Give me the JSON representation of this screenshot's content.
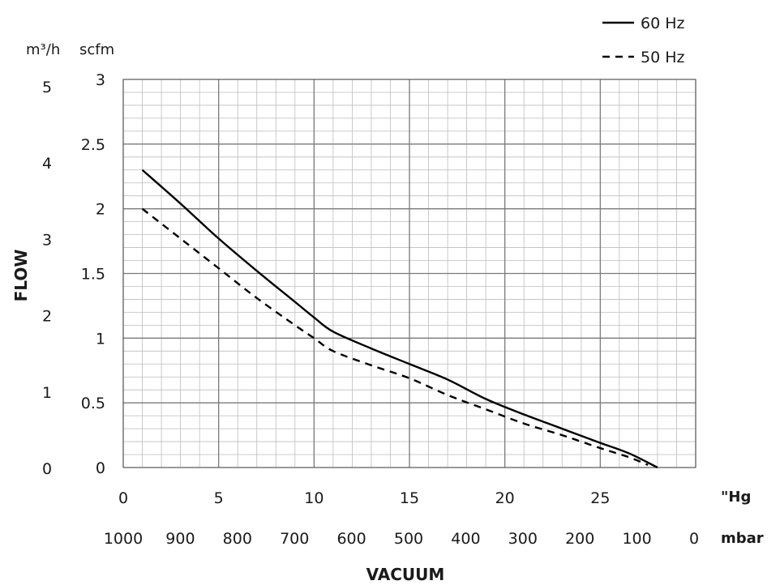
{
  "chart_data": {
    "type": "line",
    "xlabel": "VACUUM",
    "ylabel": "FLOW",
    "x_unit": "\"Hg",
    "x_unit_secondary": "mbar",
    "y_unit": "scfm",
    "y_unit_secondary": "m³/h",
    "xlim": [
      0,
      30
    ],
    "ylim": [
      0,
      3
    ],
    "x_ticks": [
      "0",
      "5",
      "10",
      "15",
      "20",
      "25"
    ],
    "x_ticks_values": [
      0,
      5,
      10,
      15,
      20,
      25
    ],
    "x2_ticks": [
      "1000",
      "900",
      "800",
      "700",
      "600",
      "500",
      "400",
      "300",
      "200",
      "100",
      "0"
    ],
    "y_ticks": [
      "0",
      "0.5",
      "1",
      "1.5",
      "2",
      "2.5",
      "3"
    ],
    "y_ticks_values": [
      0,
      0.5,
      1,
      1.5,
      2,
      2.5,
      3
    ],
    "y2_ticks": [
      "0",
      "1",
      "2",
      "3",
      "4",
      "5"
    ],
    "y2_ticks_values": [
      0,
      1,
      2,
      3,
      4,
      5
    ],
    "grid": true,
    "legend_position": "top-right",
    "series": [
      {
        "name": "60 Hz",
        "style": "solid",
        "color": "#000000",
        "x": [
          1,
          3,
          5,
          7,
          9,
          10,
          11,
          13,
          15,
          17,
          19,
          21,
          23,
          25,
          26.5,
          28
        ],
        "y": [
          2.3,
          2.04,
          1.77,
          1.52,
          1.28,
          1.16,
          1.05,
          0.92,
          0.8,
          0.68,
          0.53,
          0.41,
          0.3,
          0.19,
          0.11,
          0
        ]
      },
      {
        "name": "50 Hz",
        "style": "dashed",
        "color": "#000000",
        "x": [
          1,
          3,
          5,
          7,
          9,
          10,
          11,
          13,
          15,
          17,
          19,
          21,
          23,
          25,
          26.5,
          27.5
        ],
        "y": [
          2.0,
          1.77,
          1.54,
          1.31,
          1.1,
          1.0,
          0.9,
          0.79,
          0.69,
          0.56,
          0.45,
          0.34,
          0.25,
          0.15,
          0.08,
          0.02
        ]
      }
    ]
  }
}
